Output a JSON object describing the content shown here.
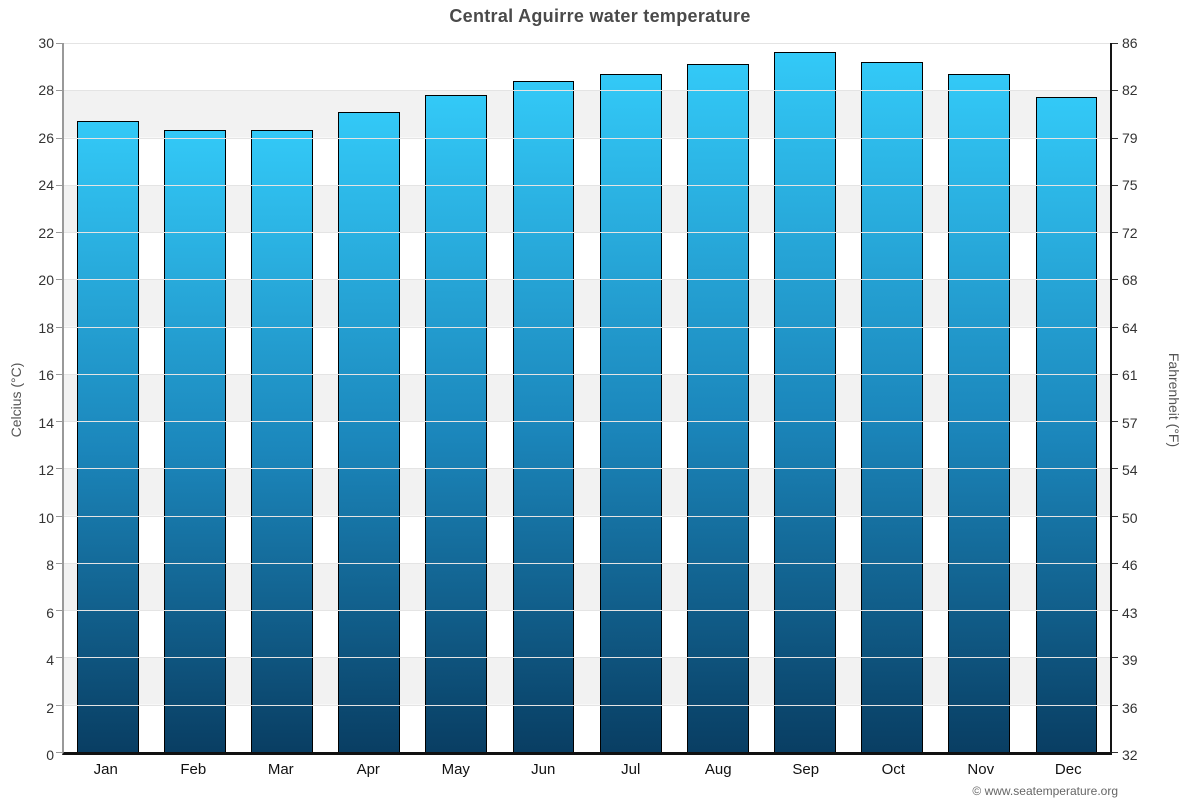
{
  "title": "Central Aguirre water temperature",
  "footer": "© www.seatemperature.org",
  "chart_data": {
    "type": "bar",
    "title": "Central Aguirre water temperature",
    "categories": [
      "Jan",
      "Feb",
      "Mar",
      "Apr",
      "May",
      "Jun",
      "Jul",
      "Aug",
      "Sep",
      "Oct",
      "Nov",
      "Dec"
    ],
    "values": [
      26.7,
      26.3,
      26.3,
      27.1,
      27.8,
      28.4,
      28.7,
      29.1,
      29.6,
      29.2,
      28.7,
      27.7
    ],
    "unit": "°C",
    "xlabel": "",
    "ylabel_left": "Celcius (°C)",
    "ylabel_right": "Fahrenheit (°F)",
    "ylim": [
      0,
      30
    ],
    "yticks_left_top_down": [
      30,
      28,
      26,
      24,
      22,
      20,
      18,
      16,
      14,
      12,
      10,
      8,
      6,
      4,
      2,
      0
    ],
    "yticks_right_top_down": [
      86,
      82,
      79,
      75,
      72,
      68,
      64,
      61,
      57,
      54,
      50,
      46,
      43,
      39,
      36,
      32
    ],
    "grid": true,
    "legend_position": "none",
    "band_pattern": "alternating horizontal bands, white top band, 2°C each"
  },
  "colors": {
    "bar_gradient_top": "#33c9f7",
    "bar_gradient_mid": "#1b86bb",
    "bar_gradient_bottom": "#093e63",
    "bar_border": "#000000",
    "band_gray": "#f2f2f2",
    "band_white": "#ffffff",
    "gridline": "#e4e4e4",
    "axis_left_line": "#999999",
    "axis_dark_line": "#151515",
    "title_text": "#4a4a4a",
    "tick_text": "#333333",
    "month_text": "#111111",
    "footer_text": "#666666"
  }
}
